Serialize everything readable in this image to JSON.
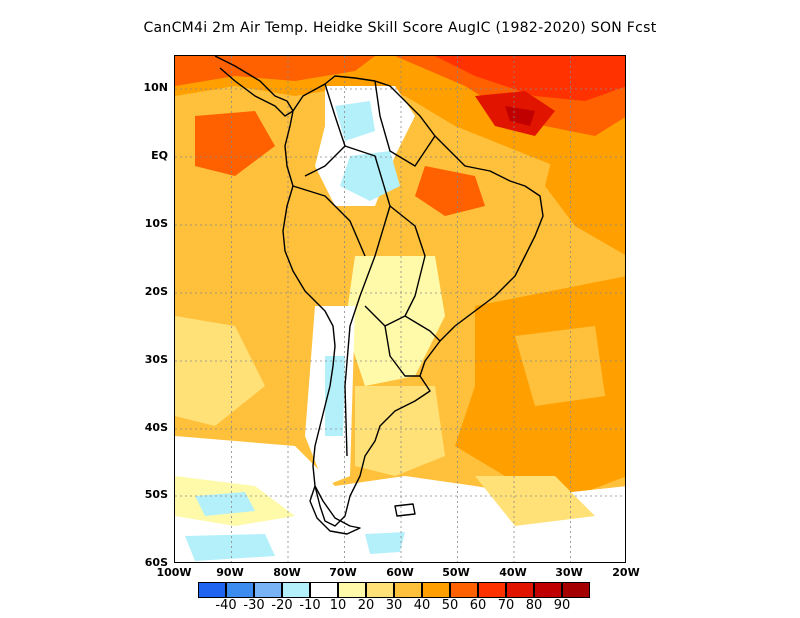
{
  "title": "CanCM4i  2m Air Temp. Heidke Skill Score AugIC (1982-2020) SON Fcst",
  "map": {
    "lat_labels": [
      "10N",
      "EQ",
      "10S",
      "20S",
      "30S",
      "40S",
      "50S",
      "60S"
    ],
    "lon_labels": [
      "100W",
      "90W",
      "80W",
      "70W",
      "60W",
      "50W",
      "40W",
      "30W",
      "20W"
    ],
    "lon_range": [
      -100,
      -20
    ],
    "lat_range": [
      -60,
      15
    ]
  },
  "legend": {
    "labels": [
      "-40",
      "-30",
      "-20",
      "-10",
      "10",
      "20",
      "30",
      "40",
      "50",
      "60",
      "70",
      "80",
      "90"
    ],
    "colors": [
      "#1e64f0",
      "#3c8cf0",
      "#78b4f5",
      "#b4f0fa",
      "#ffffff",
      "#fffaaa",
      "#ffe178",
      "#ffc03c",
      "#ffa000",
      "#ff6000",
      "#ff3200",
      "#e11400",
      "#c00000",
      "#a50000"
    ]
  }
}
